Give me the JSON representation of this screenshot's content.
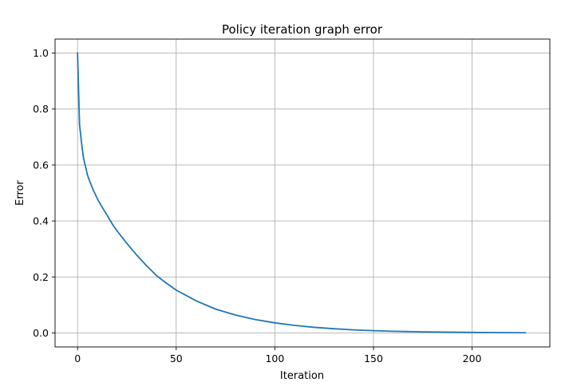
{
  "chart_data": {
    "type": "line",
    "title": "Policy iteration graph error",
    "xlabel": "Iteration",
    "ylabel": "Error",
    "xlim": [
      -11.4,
      239.4
    ],
    "ylim": [
      -0.05,
      1.05
    ],
    "xticks": [
      0,
      50,
      100,
      150,
      200
    ],
    "xtick_labels": [
      "0",
      "50",
      "100",
      "150",
      "200"
    ],
    "yticks": [
      0.0,
      0.2,
      0.4,
      0.6,
      0.8,
      1.0
    ],
    "ytick_labels": [
      "0.0",
      "0.2",
      "0.4",
      "0.6",
      "0.8",
      "1.0"
    ],
    "grid": true,
    "line_color": "#1f77b4",
    "series": [
      {
        "x": [
          0,
          1,
          2,
          3,
          4,
          5,
          6,
          8,
          10,
          12,
          15,
          18,
          20,
          25,
          30,
          35,
          40,
          45,
          50,
          60,
          70,
          80,
          90,
          100,
          110,
          120,
          130,
          140,
          150,
          160,
          170,
          180,
          190,
          200,
          210,
          220,
          227
        ],
        "y": [
          1.0,
          0.745,
          0.68,
          0.625,
          0.595,
          0.565,
          0.545,
          0.51,
          0.48,
          0.455,
          0.42,
          0.385,
          0.365,
          0.32,
          0.278,
          0.24,
          0.205,
          0.178,
          0.153,
          0.115,
          0.085,
          0.064,
          0.048,
          0.036,
          0.027,
          0.02,
          0.015,
          0.011,
          0.008,
          0.006,
          0.0045,
          0.0034,
          0.0025,
          0.0018,
          0.0013,
          0.0009,
          0.0007
        ]
      }
    ]
  }
}
